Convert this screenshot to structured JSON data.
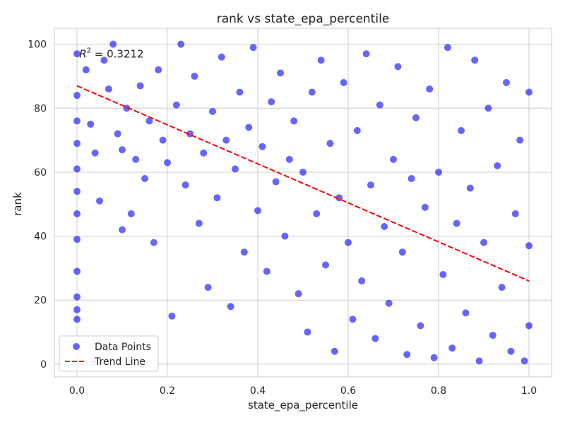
{
  "chart_data": {
    "type": "scatter",
    "title": "rank vs state_epa_percentile",
    "xlabel": "state_epa_percentile",
    "ylabel": "rank",
    "xlim": [
      -0.05,
      1.05
    ],
    "ylim": [
      -4,
      105
    ],
    "xticks": [
      0.0,
      0.2,
      0.4,
      0.6,
      0.8,
      1.0
    ],
    "xtick_labels": [
      "0.0",
      "0.2",
      "0.4",
      "0.6",
      "0.8",
      "1.0"
    ],
    "yticks": [
      0,
      20,
      40,
      60,
      80,
      100
    ],
    "ytick_labels": [
      "0",
      "20",
      "40",
      "60",
      "80",
      "100"
    ],
    "grid": true,
    "legend_position": "lower-left",
    "annotation": {
      "text_prefix": "R",
      "text_superscript": "2",
      "text_suffix": " = 0.3212",
      "x": 0.005,
      "y": 97
    },
    "series": [
      {
        "name": "Data Points",
        "kind": "scatter",
        "color": "#0000ff",
        "alpha": 0.6,
        "points": [
          [
            0.0,
            97
          ],
          [
            0.0,
            84
          ],
          [
            0.0,
            76
          ],
          [
            0.0,
            69
          ],
          [
            0.0,
            61
          ],
          [
            0.0,
            54
          ],
          [
            0.0,
            47
          ],
          [
            0.0,
            39
          ],
          [
            0.0,
            29
          ],
          [
            0.0,
            21
          ],
          [
            0.0,
            17
          ],
          [
            0.0,
            14
          ],
          [
            0.02,
            92
          ],
          [
            0.03,
            75
          ],
          [
            0.04,
            66
          ],
          [
            0.05,
            51
          ],
          [
            0.06,
            95
          ],
          [
            0.07,
            86
          ],
          [
            0.08,
            100
          ],
          [
            0.09,
            72
          ],
          [
            0.1,
            67
          ],
          [
            0.1,
            42
          ],
          [
            0.11,
            80
          ],
          [
            0.12,
            47
          ],
          [
            0.13,
            64
          ],
          [
            0.14,
            87
          ],
          [
            0.15,
            58
          ],
          [
            0.16,
            76
          ],
          [
            0.17,
            38
          ],
          [
            0.18,
            92
          ],
          [
            0.19,
            70
          ],
          [
            0.2,
            63
          ],
          [
            0.21,
            15
          ],
          [
            0.22,
            81
          ],
          [
            0.23,
            100
          ],
          [
            0.24,
            56
          ],
          [
            0.25,
            72
          ],
          [
            0.26,
            90
          ],
          [
            0.27,
            44
          ],
          [
            0.28,
            66
          ],
          [
            0.29,
            24
          ],
          [
            0.3,
            79
          ],
          [
            0.31,
            52
          ],
          [
            0.32,
            96
          ],
          [
            0.33,
            70
          ],
          [
            0.34,
            18
          ],
          [
            0.35,
            61
          ],
          [
            0.36,
            85
          ],
          [
            0.37,
            35
          ],
          [
            0.38,
            74
          ],
          [
            0.39,
            99
          ],
          [
            0.4,
            48
          ],
          [
            0.41,
            68
          ],
          [
            0.42,
            29
          ],
          [
            0.43,
            82
          ],
          [
            0.44,
            57
          ],
          [
            0.45,
            91
          ],
          [
            0.46,
            40
          ],
          [
            0.47,
            64
          ],
          [
            0.48,
            76
          ],
          [
            0.49,
            22
          ],
          [
            0.5,
            60
          ],
          [
            0.51,
            10
          ],
          [
            0.52,
            85
          ],
          [
            0.53,
            47
          ],
          [
            0.54,
            95
          ],
          [
            0.55,
            31
          ],
          [
            0.56,
            69
          ],
          [
            0.57,
            4
          ],
          [
            0.58,
            52
          ],
          [
            0.59,
            88
          ],
          [
            0.6,
            38
          ],
          [
            0.61,
            14
          ],
          [
            0.62,
            73
          ],
          [
            0.63,
            26
          ],
          [
            0.64,
            97
          ],
          [
            0.65,
            56
          ],
          [
            0.66,
            8
          ],
          [
            0.67,
            81
          ],
          [
            0.68,
            43
          ],
          [
            0.69,
            19
          ],
          [
            0.7,
            64
          ],
          [
            0.71,
            93
          ],
          [
            0.72,
            35
          ],
          [
            0.73,
            3
          ],
          [
            0.74,
            58
          ],
          [
            0.75,
            77
          ],
          [
            0.76,
            12
          ],
          [
            0.77,
            49
          ],
          [
            0.78,
            86
          ],
          [
            0.79,
            2
          ],
          [
            0.8,
            60
          ],
          [
            0.81,
            28
          ],
          [
            0.82,
            99
          ],
          [
            0.83,
            5
          ],
          [
            0.84,
            44
          ],
          [
            0.85,
            73
          ],
          [
            0.86,
            16
          ],
          [
            0.87,
            55
          ],
          [
            0.88,
            95
          ],
          [
            0.89,
            1
          ],
          [
            0.9,
            38
          ],
          [
            0.91,
            80
          ],
          [
            0.92,
            9
          ],
          [
            0.93,
            62
          ],
          [
            0.94,
            24
          ],
          [
            0.95,
            88
          ],
          [
            0.96,
            4
          ],
          [
            0.97,
            47
          ],
          [
            0.98,
            70
          ],
          [
            0.99,
            1
          ],
          [
            1.0,
            12
          ],
          [
            1.0,
            37
          ],
          [
            1.0,
            85
          ]
        ]
      },
      {
        "name": "Trend Line",
        "kind": "line",
        "color": "#ff0000",
        "dash": "dashed",
        "points": [
          [
            0.0,
            87
          ],
          [
            1.0,
            26
          ]
        ]
      }
    ]
  }
}
